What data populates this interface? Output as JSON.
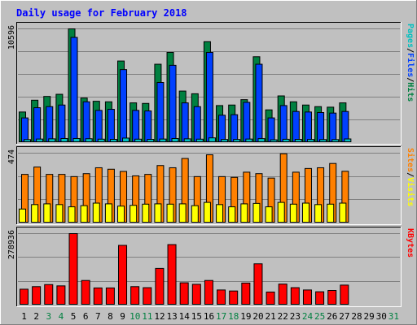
{
  "title": "Daily usage for February 2018",
  "colors": {
    "background": "#C0C0C0",
    "panel": "#C0C0C0",
    "grid": "#808080",
    "title": "#0000FF",
    "pages": "#00C0C0",
    "files": "#0040FF",
    "hits": "#008040",
    "sites": "#FF8000",
    "visits": "#FFFF00",
    "kbytes": "#FF0000",
    "weekend_label": "#008040"
  },
  "chart_data": [
    {
      "type": "bar",
      "panel": "hits-files-pages",
      "title": "Daily usage for February 2018",
      "ylabel_parts": [
        "Pages",
        "/",
        "Files",
        "/",
        "Hits"
      ],
      "ymax_label": "10596",
      "ylim": [
        0,
        10596
      ],
      "grid": true,
      "days": [
        1,
        2,
        3,
        4,
        5,
        6,
        7,
        8,
        9,
        10,
        11,
        12,
        13,
        14,
        15,
        16,
        17,
        18,
        19,
        20,
        21,
        22,
        23,
        24,
        25,
        26,
        27,
        28,
        29,
        30,
        31
      ],
      "series": [
        {
          "name": "Hits",
          "values": [
            2850,
            3950,
            4300,
            4500,
            10596,
            4150,
            3850,
            3800,
            7600,
            3700,
            3650,
            7300,
            8400,
            4800,
            4550,
            9400,
            3450,
            3500,
            4000,
            8000,
            3050,
            4350,
            3800,
            3500,
            3350,
            3300,
            3700,
            0,
            0,
            0,
            0
          ]
        },
        {
          "name": "Files",
          "values": [
            2300,
            3250,
            3350,
            3500,
            9800,
            3800,
            3000,
            3100,
            6800,
            3000,
            2950,
            5600,
            7200,
            3700,
            3350,
            8400,
            2550,
            2600,
            3750,
            7300,
            2300,
            3450,
            2900,
            2850,
            2800,
            2750,
            2900,
            0,
            0,
            0,
            0
          ]
        },
        {
          "name": "Pages",
          "values": [
            280,
            330,
            350,
            380,
            380,
            360,
            320,
            300,
            420,
            320,
            300,
            330,
            380,
            350,
            320,
            440,
            290,
            290,
            330,
            370,
            260,
            310,
            300,
            290,
            280,
            280,
            340,
            0,
            0,
            0,
            0
          ]
        }
      ]
    },
    {
      "type": "bar",
      "panel": "visits-sites",
      "ylabel_parts": [
        "Sites",
        "/",
        "Visits"
      ],
      "ymax_label": "474",
      "ylim": [
        0,
        474
      ],
      "grid": true,
      "days": [
        1,
        2,
        3,
        4,
        5,
        6,
        7,
        8,
        9,
        10,
        11,
        12,
        13,
        14,
        15,
        16,
        17,
        18,
        19,
        20,
        21,
        22,
        23,
        24,
        25,
        26,
        27,
        28,
        29,
        30,
        31
      ],
      "series": [
        {
          "name": "Sites",
          "values": [
            330,
            380,
            330,
            330,
            315,
            335,
            375,
            365,
            350,
            320,
            330,
            390,
            375,
            438,
            315,
            463,
            315,
            310,
            345,
            335,
            305,
            470,
            345,
            370,
            375,
            404,
            351,
            0,
            0,
            0,
            0
          ]
        },
        {
          "name": "Visits",
          "values": [
            95,
            125,
            130,
            125,
            110,
            118,
            135,
            130,
            115,
            120,
            128,
            130,
            128,
            130,
            118,
            140,
            125,
            110,
            130,
            133,
            110,
            140,
            128,
            135,
            125,
            128,
            135,
            0,
            0,
            0,
            0
          ]
        }
      ]
    },
    {
      "type": "bar",
      "panel": "kbytes",
      "ylabel_parts": [
        "KBytes"
      ],
      "ymax_label": "278936",
      "ylim": [
        0,
        278936
      ],
      "grid": true,
      "days": [
        1,
        2,
        3,
        4,
        5,
        6,
        7,
        8,
        9,
        10,
        11,
        12,
        13,
        14,
        15,
        16,
        17,
        18,
        19,
        20,
        21,
        22,
        23,
        24,
        25,
        26,
        27,
        28,
        29,
        30,
        31
      ],
      "weekend_days": [
        3,
        4,
        10,
        11,
        17,
        18,
        24,
        25,
        31
      ],
      "series": [
        {
          "name": "KBytes",
          "values": [
            62000,
            72000,
            80000,
            75000,
            278936,
            96000,
            67000,
            67000,
            233000,
            72000,
            68000,
            143000,
            236000,
            87000,
            81000,
            96000,
            59000,
            55000,
            86000,
            161000,
            51000,
            82000,
            68000,
            59000,
            52000,
            57000,
            78000,
            0,
            0,
            0,
            0
          ]
        }
      ]
    }
  ]
}
